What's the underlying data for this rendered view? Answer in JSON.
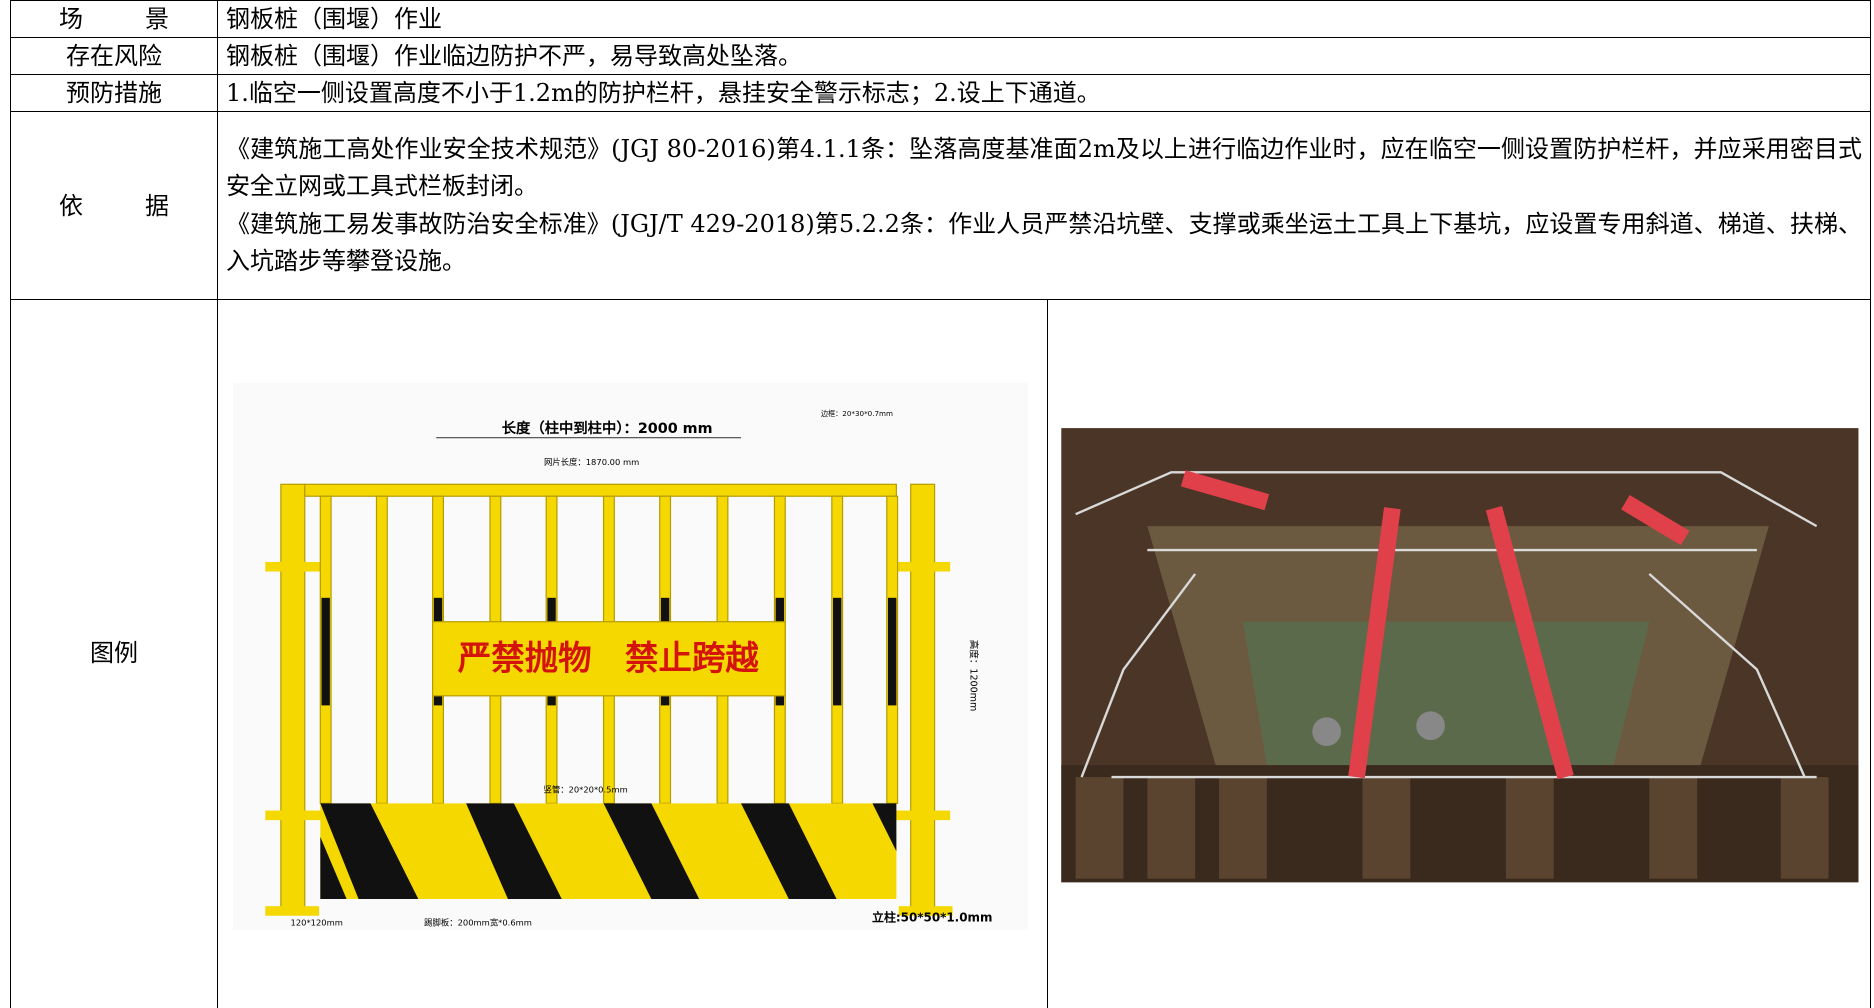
{
  "table": {
    "scene": {
      "label": "场景",
      "content": "钢板桩（围堰）作业"
    },
    "risk": {
      "label": "存在风险",
      "content": "钢板桩（围堰）作业临边防护不严，易导致高处坠落。"
    },
    "prevention": {
      "label": "预防措施",
      "content": "1.临空一侧设置高度不小于1.2m的防护栏杆，悬挂安全警示标志；2.设上下通道。"
    },
    "basis": {
      "label": "依据",
      "paragraphs": [
        "《建筑施工高处作业安全技术规范》(JGJ 80-2016)第4.1.1条：坠落高度基准面2m及以上进行临边作业时，应在临空一侧设置防护栏杆，并应采用密目式安全立网或工具式栏板封闭。",
        "《建筑施工易发事故防治安全标准》(JGJ/T 429-2018)第5.2.2条：作业人员严禁沿坑壁、支撑或乘坐运土工具上下基坑，应设置专用斜道、梯道、扶梯、入坑踏步等攀登设施。"
      ]
    },
    "figure": {
      "label": "图例"
    }
  },
  "fence": {
    "length": "长度（柱中到柱中）：2000 mm",
    "panel": "网片长度：1870.00 mm",
    "frame": "边框：20*30*0.7mm",
    "sign": "严禁抛物　禁止跨越",
    "tube": "竖管：20*20*0.5mm",
    "height": "高度：1200mm",
    "base": "120*120mm",
    "kick": "踢脚板：200mm宽*0.6mm",
    "post": "立柱:50*50*1.0mm"
  }
}
